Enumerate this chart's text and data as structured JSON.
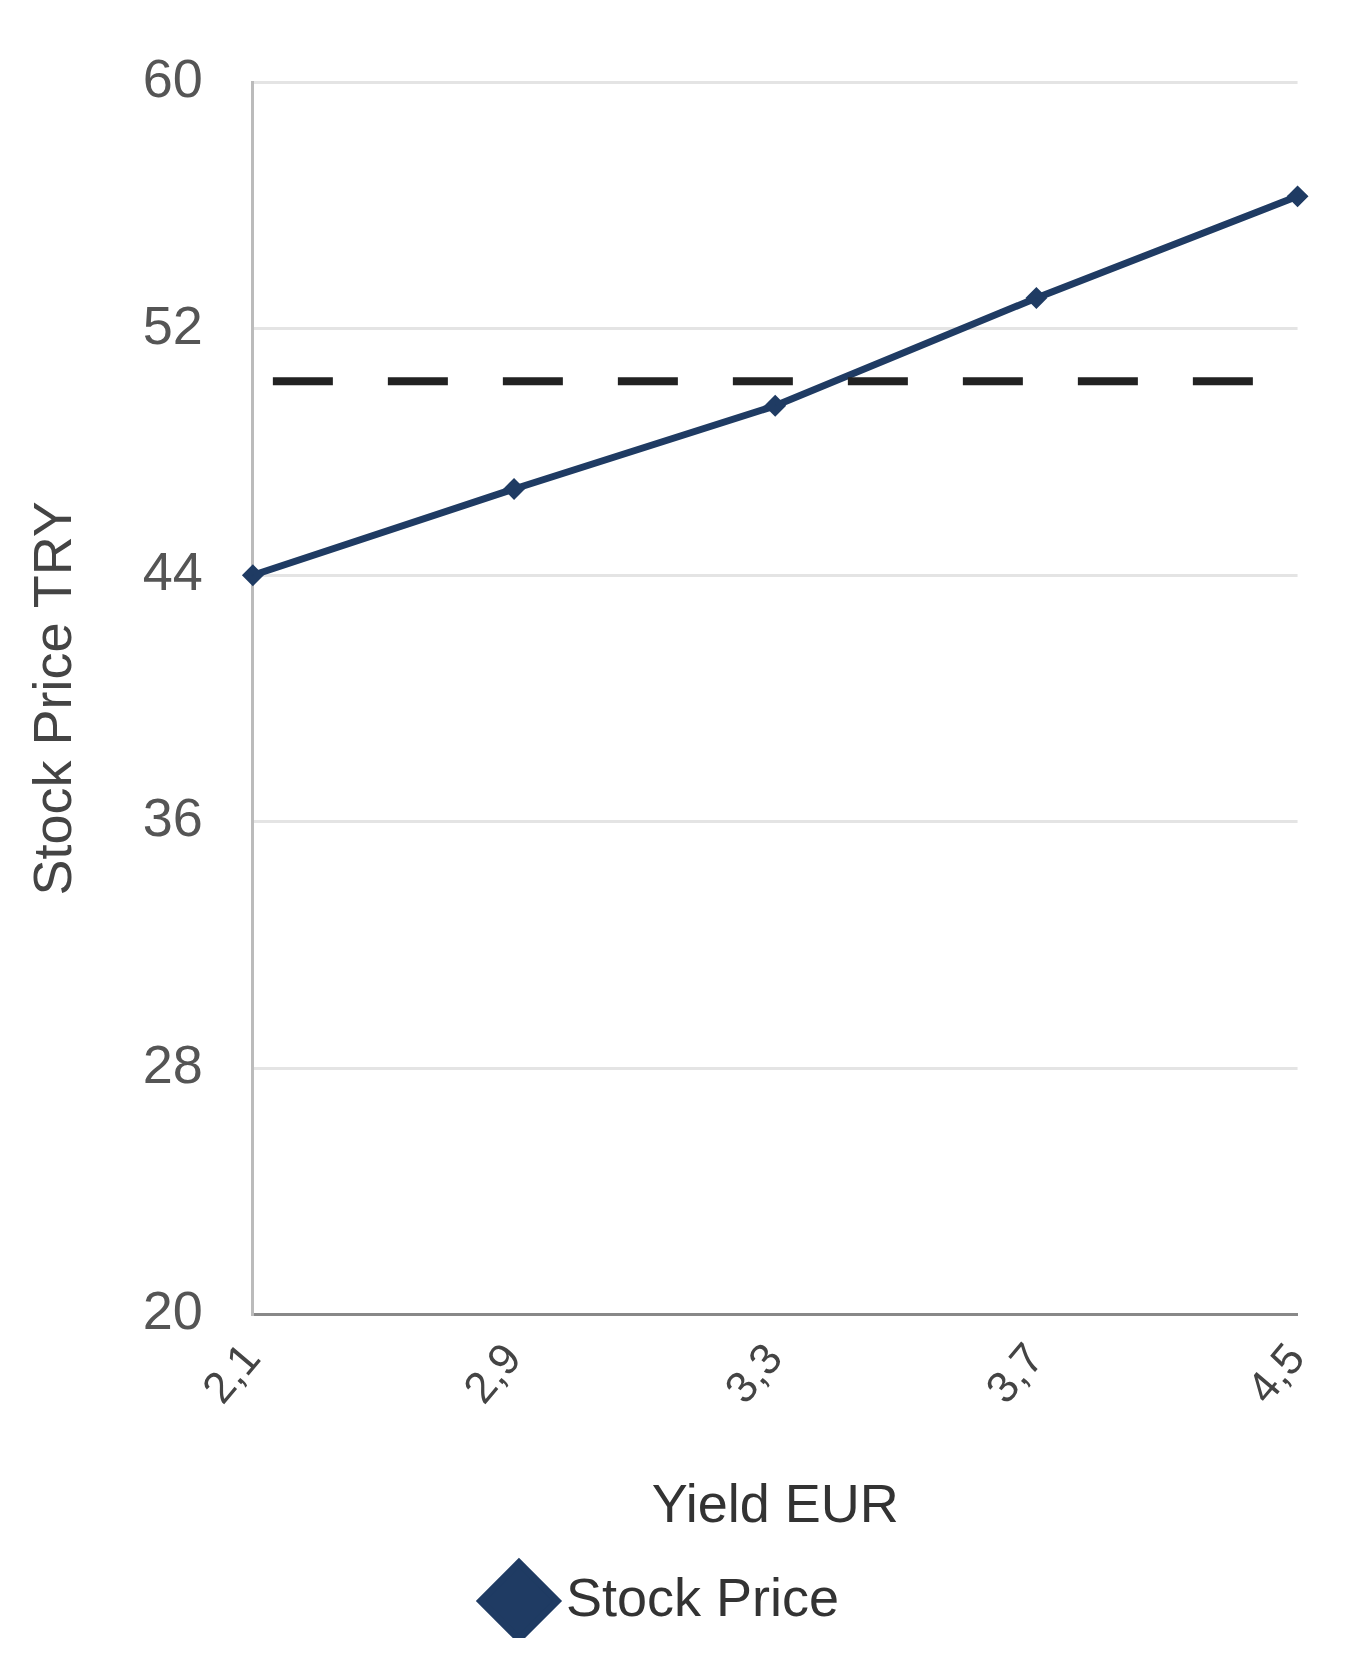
{
  "chart_data": {
    "type": "line",
    "xlabel": "Yield EUR",
    "ylabel": "Stock Price TRY",
    "categories": [
      "2,1",
      "2,9",
      "3,3",
      "3,7",
      "4,5"
    ],
    "series": [
      {
        "name": "Stock Price",
        "color": "#1f3b63",
        "values": [
          44,
          46.8,
          49.5,
          53,
          56.3
        ]
      }
    ],
    "ylim": [
      20,
      60
    ],
    "yticks": [
      20,
      28,
      36,
      44,
      52,
      60
    ],
    "grid": "y",
    "legend": "bottom",
    "marker": "diamond",
    "line_style": "solid",
    "ref_lines": [
      {
        "axis": "y",
        "value": 50.3,
        "color": "#222222",
        "line_style": "dashed"
      }
    ]
  }
}
